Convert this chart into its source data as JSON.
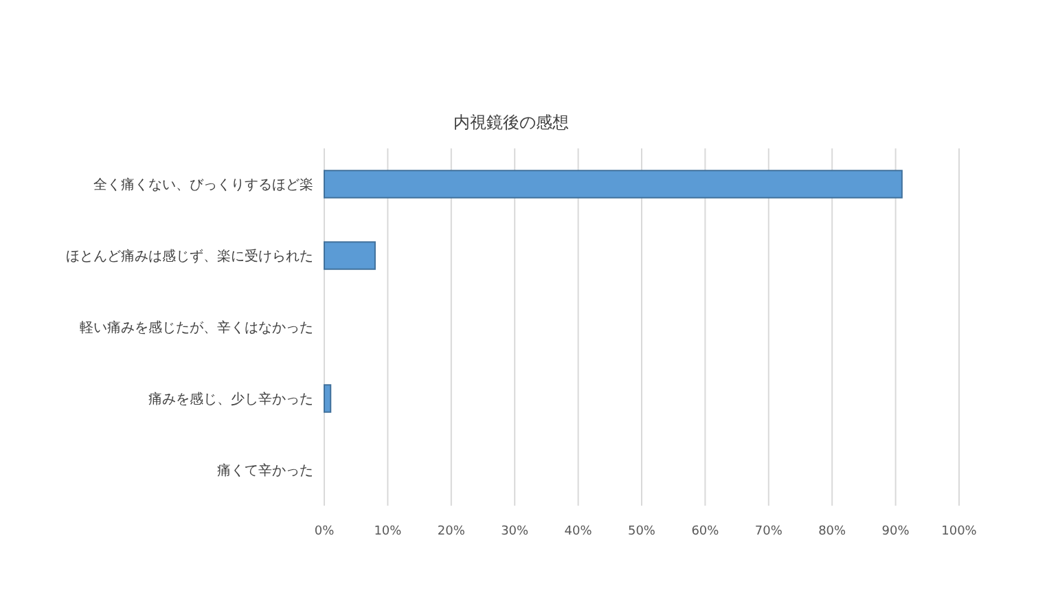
{
  "chart_data": {
    "type": "bar",
    "orientation": "horizontal",
    "title": "内視鏡後の感想",
    "categories": [
      "全く痛くない、びっくりするほど楽",
      "ほとんど痛みは感じず、楽に受けられた",
      "軽い痛みを感じたが、辛くはなかった",
      "痛みを感じ、少し辛かった",
      "痛くて辛かった"
    ],
    "values": [
      91,
      8,
      0,
      1,
      0
    ],
    "color": "#5b9bd5",
    "xlim": [
      0,
      100
    ],
    "xticks": [
      {
        "value": 0,
        "label": "0%"
      },
      {
        "value": 10,
        "label": "10%"
      },
      {
        "value": 20,
        "label": "20%"
      },
      {
        "value": 30,
        "label": "30%"
      },
      {
        "value": 40,
        "label": "40%"
      },
      {
        "value": 50,
        "label": "50%"
      },
      {
        "value": 60,
        "label": "60%"
      },
      {
        "value": 70,
        "label": "70%"
      },
      {
        "value": 80,
        "label": "80%"
      },
      {
        "value": 90,
        "label": "90%"
      },
      {
        "value": 100,
        "label": "100%"
      }
    ],
    "grid": "x"
  }
}
